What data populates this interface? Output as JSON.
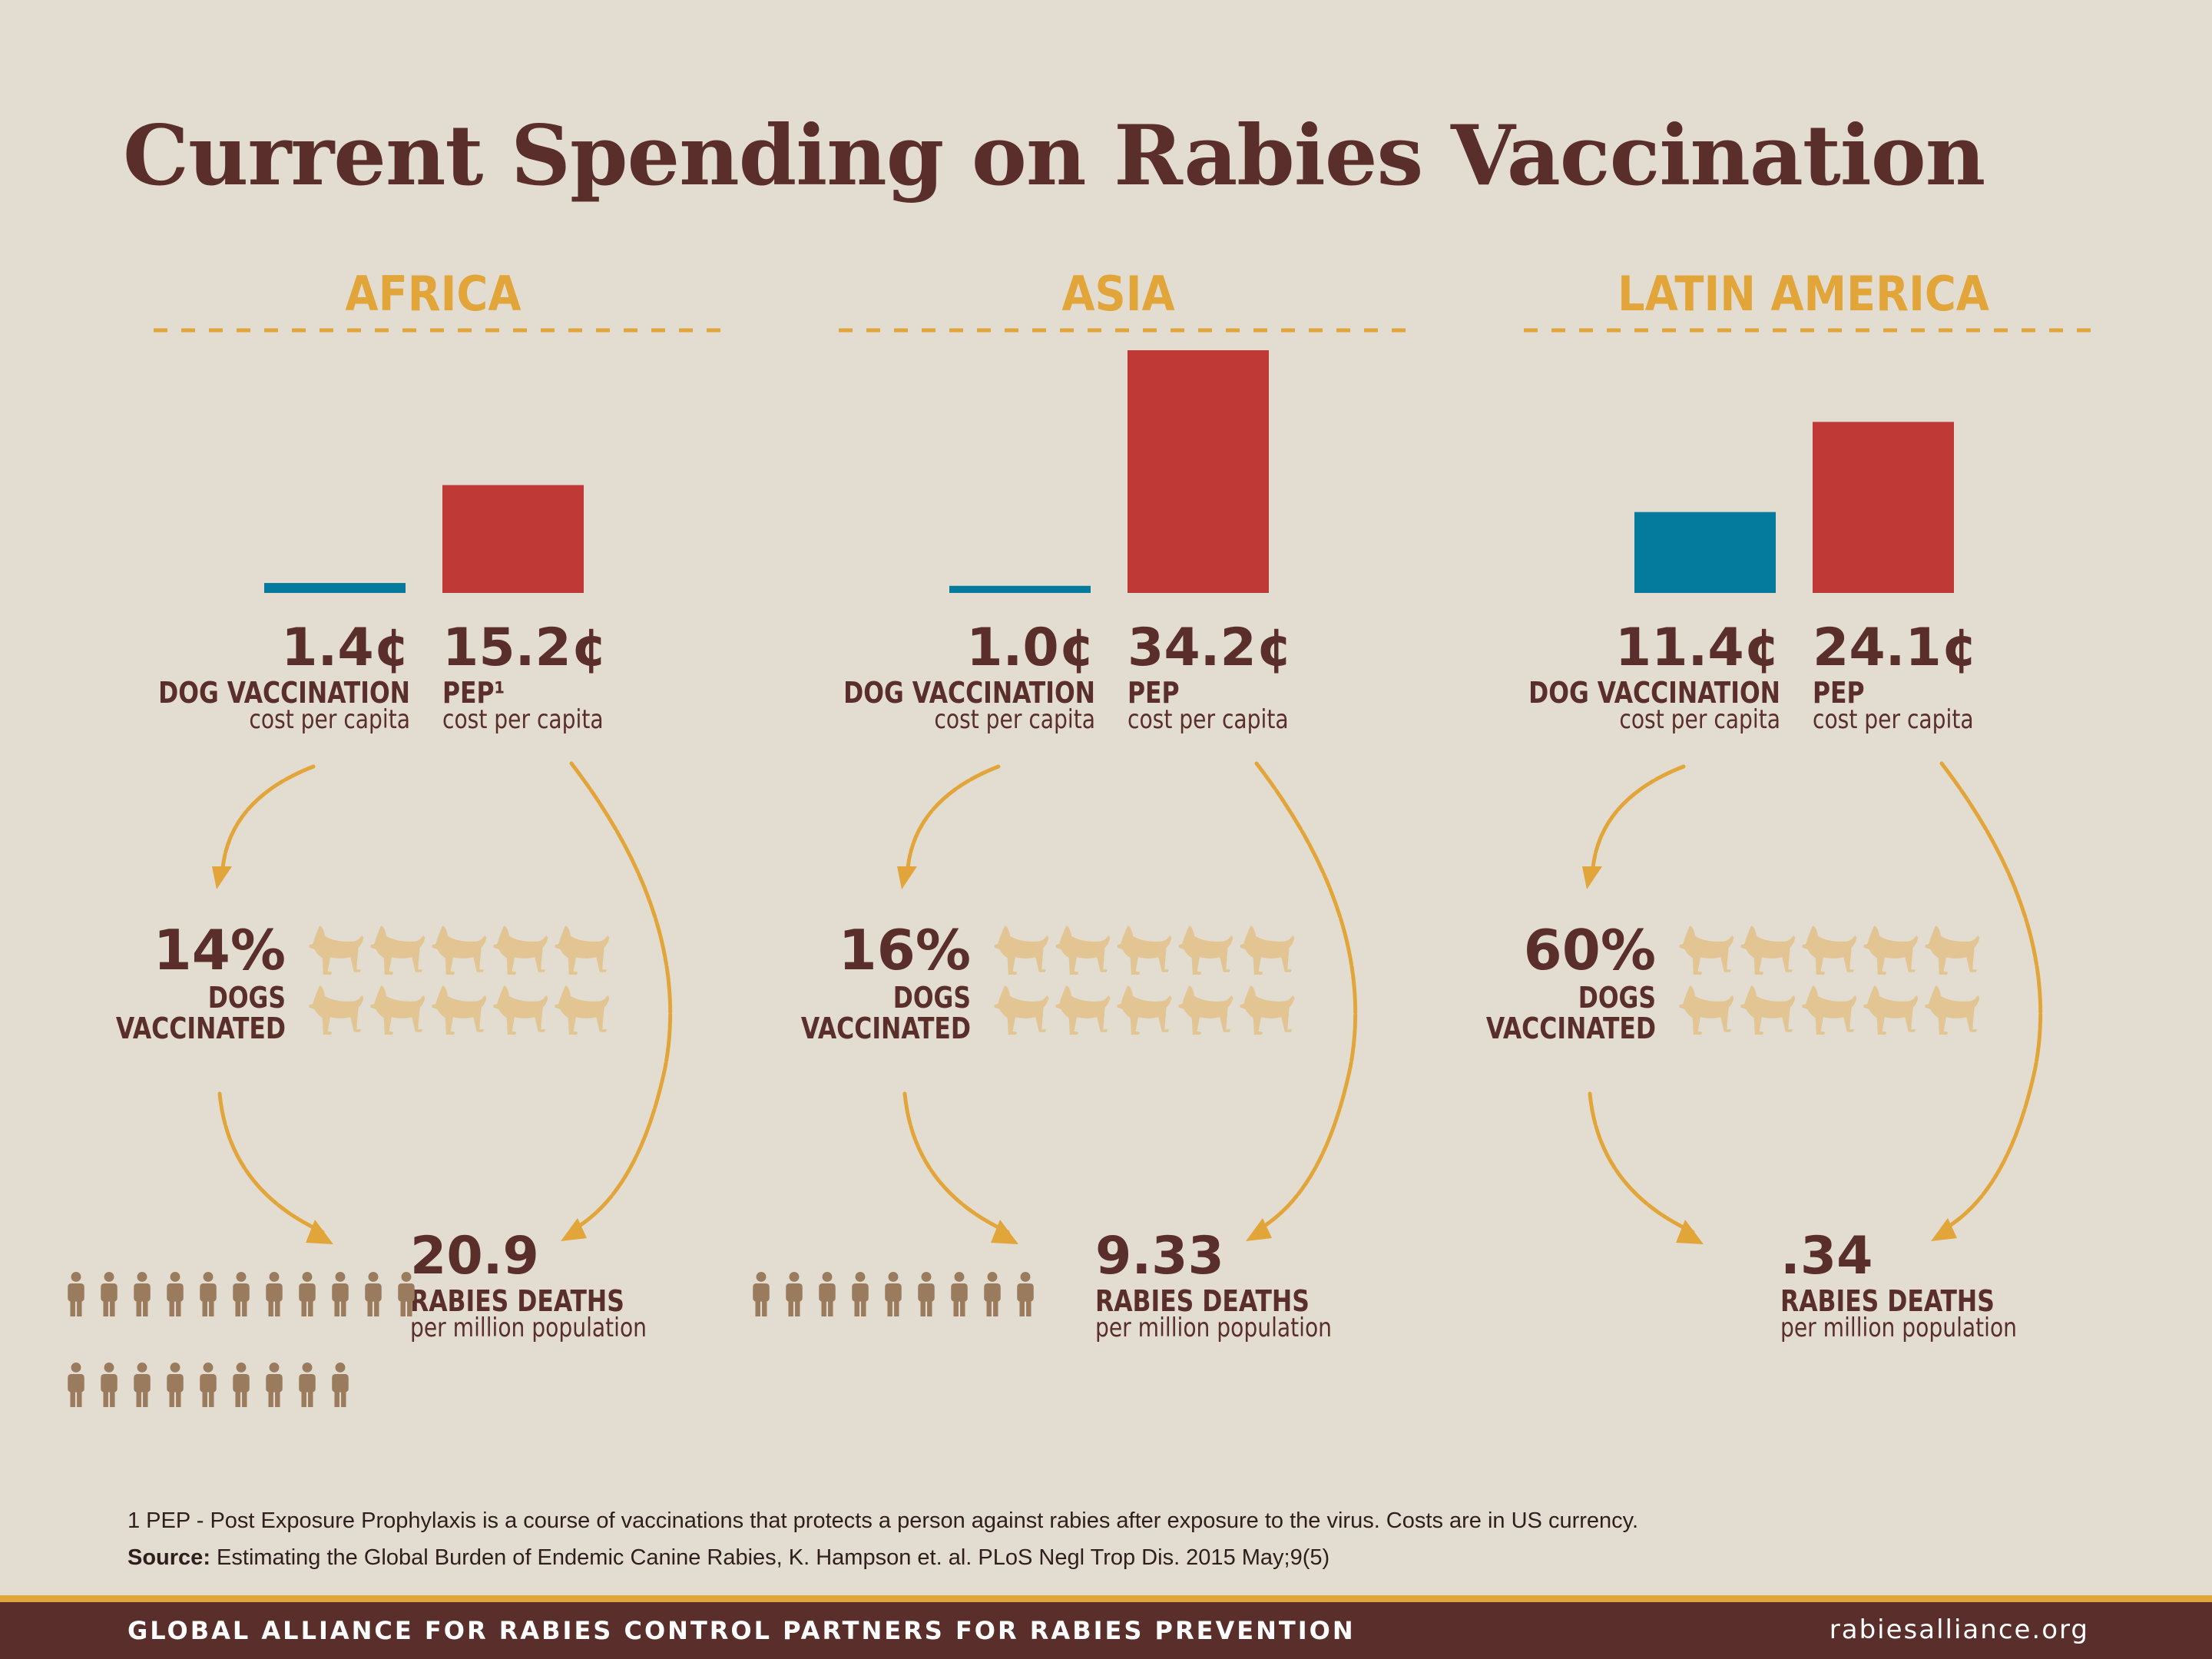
{
  "title": "Current Spending on Rabies Vaccination",
  "colors": {
    "background": "#e3ddd1",
    "title": "#5a2e2a",
    "region": "#e2a53a",
    "dog_vaccination_bar": "#047a9c",
    "pep_bar": "#bf3a37",
    "dog_vaccinated": "#047a9c",
    "dog_unvaccinated": "#e2c592",
    "person": "#9a7b5e",
    "footer": "#5a2e2a"
  },
  "icons": [
    "dog-icon",
    "person-icon",
    "arrow-icon"
  ],
  "chart_data": {
    "type": "bar",
    "categories": [
      "AFRICA",
      "ASIA",
      "LATIN AMERICA"
    ],
    "series": [
      {
        "name": "DOG VACCINATION",
        "unit": "¢",
        "values": [
          1.4,
          1.0,
          11.4
        ]
      },
      {
        "name": "PEP",
        "unit": "¢",
        "values": [
          15.2,
          34.2,
          24.1
        ]
      }
    ],
    "regions": [
      {
        "name": "AFRICA",
        "dog_vaccination": {
          "value": 1.4,
          "label": "1.4¢",
          "title": "DOG VACCINATION",
          "sub": "cost per capita"
        },
        "pep": {
          "value": 15.2,
          "label": "15.2¢",
          "title": "PEP¹",
          "sub": "cost per capita"
        },
        "dogs_vaccinated": {
          "percent": 14,
          "label": "14%",
          "line1": "DOGS",
          "line2": "VACCINATED"
        },
        "deaths": {
          "value": 20.9,
          "label": "20.9",
          "title": "RABIES DEATHS",
          "sub": "per million population"
        }
      },
      {
        "name": "ASIA",
        "dog_vaccination": {
          "value": 1.0,
          "label": "1.0¢",
          "title": "DOG VACCINATION",
          "sub": "cost per capita"
        },
        "pep": {
          "value": 34.2,
          "label": "34.2¢",
          "title": "PEP",
          "sub": "cost per capita"
        },
        "dogs_vaccinated": {
          "percent": 16,
          "label": "16%",
          "line1": "DOGS",
          "line2": "VACCINATED"
        },
        "deaths": {
          "value": 9.33,
          "label": "9.33",
          "title": "RABIES DEATHS",
          "sub": "per million population"
        }
      },
      {
        "name": "LATIN AMERICA",
        "dog_vaccination": {
          "value": 11.4,
          "label": "11.4¢",
          "title": "DOG VACCINATION",
          "sub": "cost per capita"
        },
        "pep": {
          "value": 24.1,
          "label": "24.1¢",
          "title": "PEP",
          "sub": "cost per capita"
        },
        "dogs_vaccinated": {
          "percent": 60,
          "label": "60%",
          "line1": "DOGS",
          "line2": "VACCINATED"
        },
        "deaths": {
          "value": 0.34,
          "label": ".34",
          "title": "RABIES DEATHS",
          "sub": "per million population"
        }
      }
    ]
  },
  "footnote": {
    "line1": "1 PEP - Post Exposure Prophylaxis is a course of vaccinations that protects a person against rabies after exposure to the virus. Costs are in US currency.",
    "source_label": "Source:",
    "source_text": " Estimating the Global Burden of Endemic Canine Rabies, K. Hampson et. al. PLoS Negl Trop Dis. 2015 May;9(5)"
  },
  "footer": {
    "left": "GLOBAL ALLIANCE FOR RABIES CONTROL PARTNERS FOR RABIES PREVENTION",
    "right": "rabiesalliance.org"
  }
}
